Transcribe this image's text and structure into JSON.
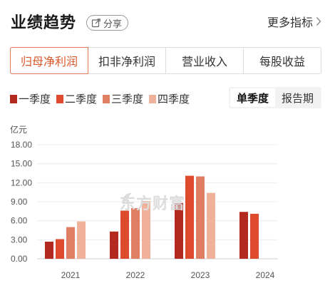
{
  "header": {
    "title": "业绩趋势",
    "share_label": "分享",
    "more_label": "更多指标"
  },
  "tabs": [
    {
      "label": "归母净利润",
      "active": true
    },
    {
      "label": "扣非净利润",
      "active": false
    },
    {
      "label": "营业收入",
      "active": false
    },
    {
      "label": "每股收益",
      "active": false
    }
  ],
  "period_toggle": [
    {
      "label": "单季度",
      "active": true
    },
    {
      "label": "报告期",
      "active": false
    }
  ],
  "watermark": "东方财富",
  "colors": {
    "accent": "#d9582c",
    "q1": "#b3291f",
    "q2": "#dd4a2c",
    "q3": "#e07e63",
    "q4": "#efb19a"
  },
  "chart_data": {
    "type": "bar",
    "unit": "亿元",
    "categories": [
      "2021",
      "2022",
      "2023",
      "2024"
    ],
    "ylim": [
      0,
      18
    ],
    "yticks": [
      "0.00",
      "3.00",
      "6.00",
      "9.00",
      "12.00",
      "15.00",
      "18.00"
    ],
    "legend_position": "top-left",
    "grid": true,
    "series": [
      {
        "name": "一季度",
        "values": [
          2.7,
          4.3,
          8.8,
          7.4
        ]
      },
      {
        "name": "二季度",
        "values": [
          3.1,
          7.6,
          13.1,
          7.1
        ]
      },
      {
        "name": "三季度",
        "values": [
          5.0,
          8.0,
          13.0,
          null
        ]
      },
      {
        "name": "四季度",
        "values": [
          5.9,
          9.1,
          10.4,
          null
        ]
      }
    ]
  }
}
